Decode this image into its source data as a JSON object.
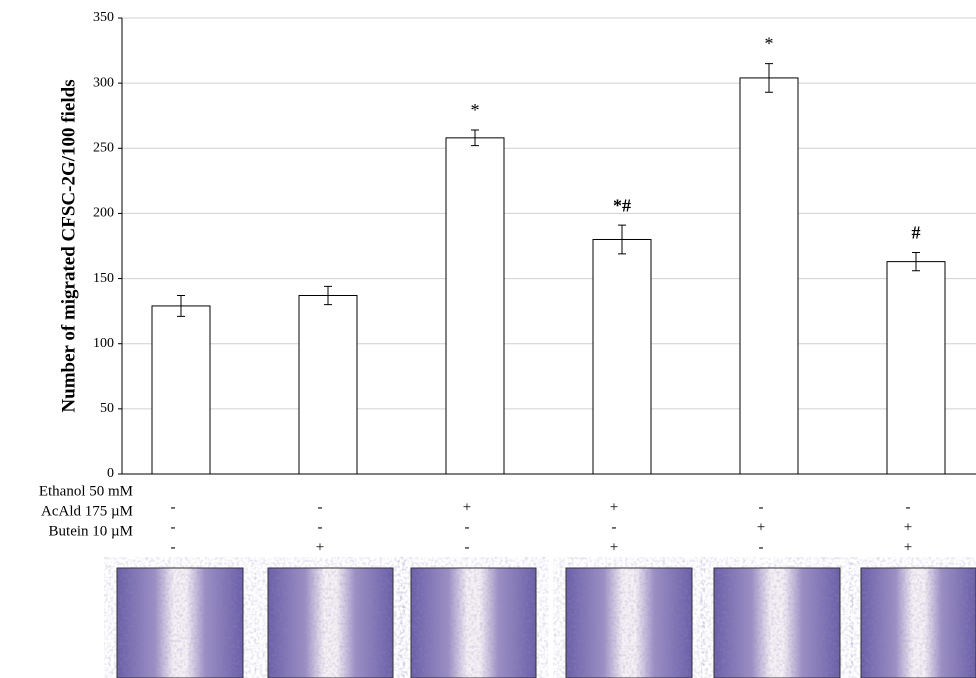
{
  "chart_data": {
    "type": "bar",
    "ylabel": "Number of migrated CFSC-2G/100 fields",
    "values": [
      129,
      137,
      258,
      180,
      304,
      163
    ],
    "errors": [
      8,
      7,
      6,
      11,
      11,
      7
    ],
    "annotations": [
      null,
      null,
      "*",
      "*#",
      "*",
      "#"
    ],
    "color": "#ffffff",
    "ylim": [
      0,
      350
    ],
    "yticks": [
      0,
      50,
      100,
      150,
      200,
      250,
      300,
      350
    ],
    "grid": true,
    "treatments": [
      {
        "name": "Ethanol 50 mM",
        "signs": [
          "-",
          "-",
          "+",
          "+",
          "-",
          "-"
        ]
      },
      {
        "name": "AcAld 175 µM",
        "signs": [
          "-",
          "-",
          "-",
          "-",
          "+",
          "+"
        ]
      },
      {
        "name": "Butein 10 µM",
        "signs": [
          "-",
          "+",
          "-",
          "+",
          "-",
          "+"
        ]
      }
    ]
  }
}
